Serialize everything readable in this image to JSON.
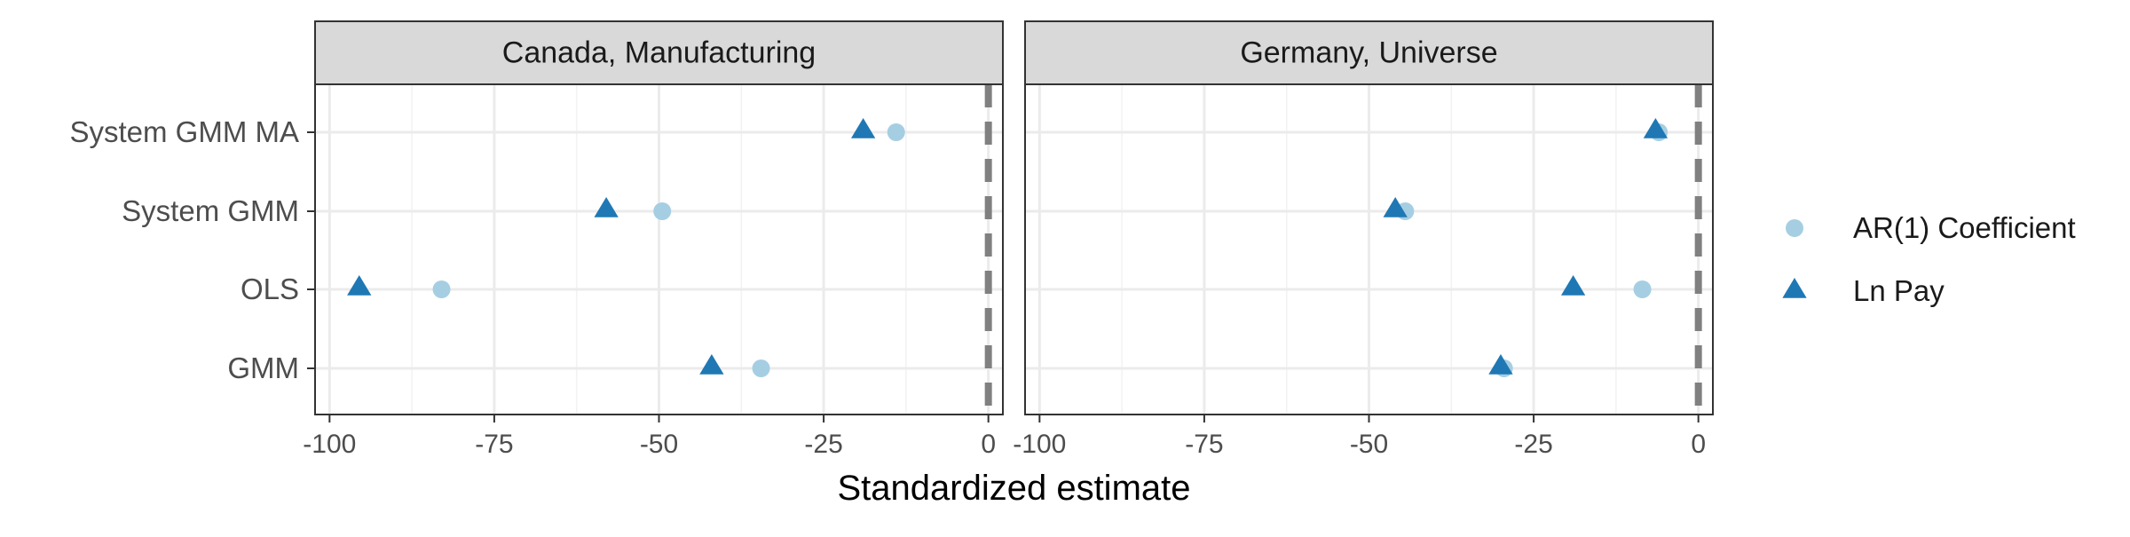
{
  "chart_data": {
    "type": "scatter",
    "xlabel": "Standardized estimate",
    "ylabel": "",
    "xlim": [
      -100,
      0
    ],
    "x_ticks": [
      -100,
      -75,
      -50,
      -25,
      0
    ],
    "x_tick_labels": [
      "-100",
      "-75",
      "-50",
      "-25",
      "0"
    ],
    "categories": [
      "System GMM MA",
      "System GMM",
      "OLS",
      "GMM"
    ],
    "reference_line": {
      "x": 0,
      "style": "dashed",
      "color": "#808080"
    },
    "grid": true,
    "legend_position": "right",
    "series": [
      {
        "name": "AR(1) Coefficient",
        "marker": "circle",
        "color": "#a6cee3"
      },
      {
        "name": "Ln Pay",
        "marker": "triangle",
        "color": "#1f78b4"
      }
    ],
    "panels": [
      {
        "title": "Canada, Manufacturing",
        "values": {
          "AR(1) Coefficient": [
            -14,
            -49.5,
            -83,
            -34.5
          ],
          "Ln Pay": [
            -19,
            -58,
            -95.5,
            -42
          ]
        }
      },
      {
        "title": "Germany, Universe",
        "values": {
          "AR(1) Coefficient": [
            -6,
            -44.5,
            -8.5,
            -29.5
          ],
          "Ln Pay": [
            -6.5,
            -46,
            -19,
            -30
          ]
        }
      }
    ]
  }
}
